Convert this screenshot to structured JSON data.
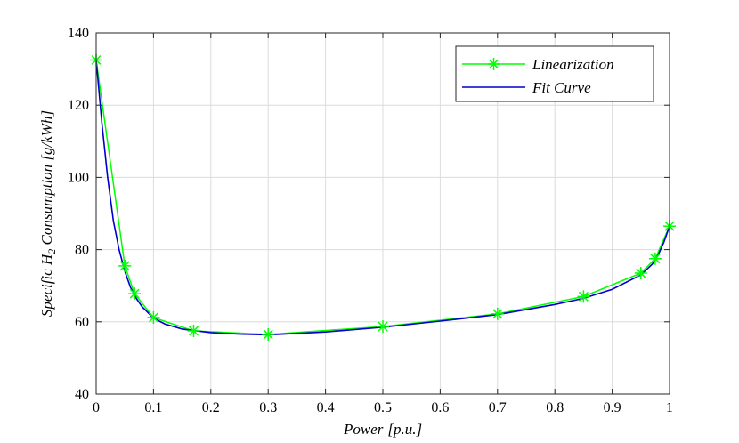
{
  "chart_data": {
    "type": "line",
    "xlabel": {
      "main": "Power",
      "unit": "[p.u.]"
    },
    "ylabel": {
      "pre": "Specific H",
      "sub": "2",
      "post": " Consumption [g/kWh]"
    },
    "xlim": [
      0,
      1
    ],
    "ylim": [
      40,
      140
    ],
    "x_ticks": [
      "0",
      "0.1",
      "0.2",
      "0.3",
      "0.4",
      "0.5",
      "0.6",
      "0.7",
      "0.8",
      "0.9",
      "1"
    ],
    "y_ticks": [
      "40",
      "60",
      "80",
      "100",
      "120",
      "140"
    ],
    "grid": true,
    "legend_position": "top-right",
    "series": [
      {
        "name": "Linearization",
        "color": "#00ff00",
        "marker": "asterisk",
        "x": [
          0,
          0.05,
          0.067,
          0.1,
          0.17,
          0.3,
          0.5,
          0.7,
          0.85,
          0.95,
          0.975,
          1.0
        ],
        "y": [
          132.5,
          75.5,
          67.8,
          61.2,
          57.5,
          56.5,
          58.7,
          62.2,
          67.0,
          73.5,
          77.5,
          86.5
        ]
      },
      {
        "name": "Fit Curve",
        "color": "#0000cc",
        "marker": "none",
        "x": [
          0,
          0.01,
          0.02,
          0.03,
          0.04,
          0.05,
          0.06,
          0.07,
          0.08,
          0.1,
          0.12,
          0.15,
          0.2,
          0.25,
          0.3,
          0.4,
          0.5,
          0.6,
          0.7,
          0.8,
          0.85,
          0.9,
          0.95,
          0.97,
          0.98,
          0.99,
          1.0
        ],
        "y": [
          132.5,
          115,
          100,
          88,
          80,
          74,
          69.5,
          66.5,
          64.2,
          61.0,
          59.4,
          58.0,
          57.0,
          56.6,
          56.4,
          57.2,
          58.5,
          60.2,
          62.0,
          64.8,
          66.5,
          69.0,
          73.0,
          76.0,
          78.5,
          82.0,
          86.5
        ]
      }
    ]
  }
}
